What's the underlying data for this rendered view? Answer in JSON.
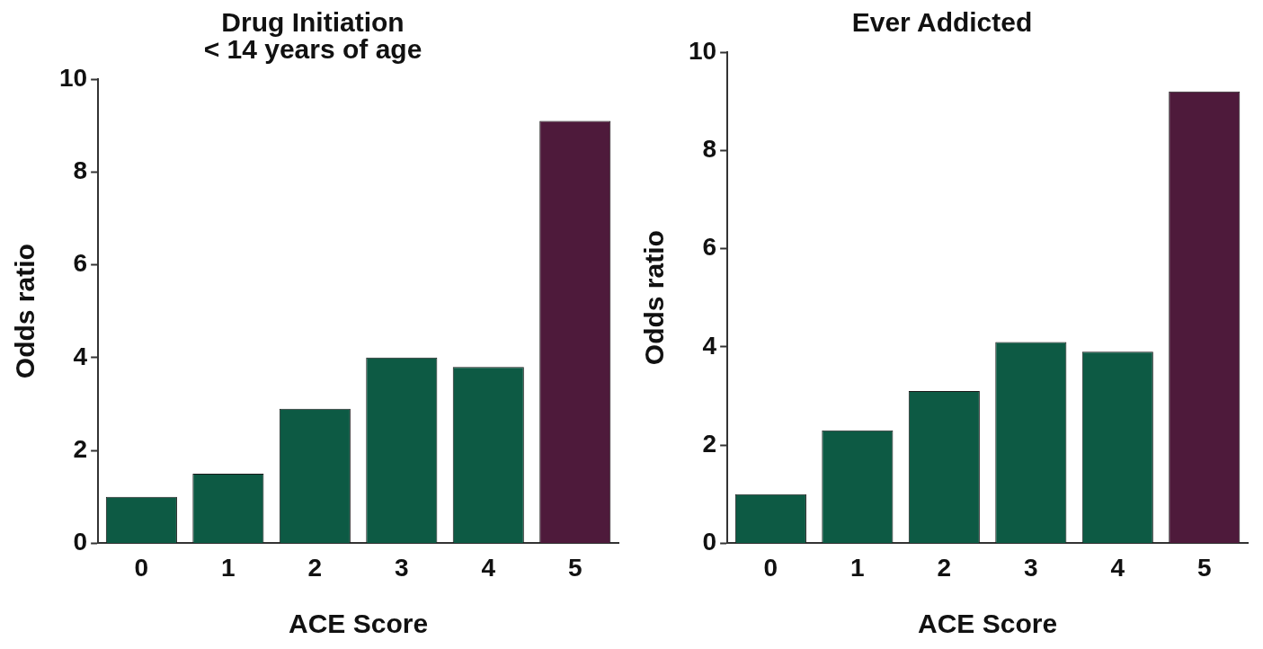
{
  "chart_data": [
    {
      "type": "bar",
      "title": "Drug Initiation\n< 14 years of age",
      "xlabel": "ACE Score",
      "ylabel": "Odds ratio",
      "categories": [
        "0",
        "1",
        "2",
        "3",
        "4",
        "5"
      ],
      "values": [
        1.0,
        1.5,
        2.9,
        4.0,
        3.8,
        9.1
      ],
      "colors": [
        "#0d5a44",
        "#0d5a44",
        "#0d5a44",
        "#0d5a44",
        "#0d5a44",
        "#4e1a3b"
      ],
      "ylim": [
        0,
        10
      ],
      "yticks": [
        0,
        2,
        4,
        6,
        8,
        10
      ],
      "grid": false,
      "legend": false
    },
    {
      "type": "bar",
      "title": "Ever Addicted",
      "xlabel": "ACE Score",
      "ylabel": "Odds ratio",
      "categories": [
        "0",
        "1",
        "2",
        "3",
        "4",
        "5"
      ],
      "values": [
        1.0,
        2.3,
        3.1,
        4.1,
        3.9,
        9.2
      ],
      "colors": [
        "#0d5a44",
        "#0d5a44",
        "#0d5a44",
        "#0d5a44",
        "#0d5a44",
        "#4e1a3b"
      ],
      "ylim": [
        0,
        10
      ],
      "yticks": [
        0,
        2,
        4,
        6,
        8,
        10
      ],
      "grid": false,
      "legend": false
    }
  ]
}
